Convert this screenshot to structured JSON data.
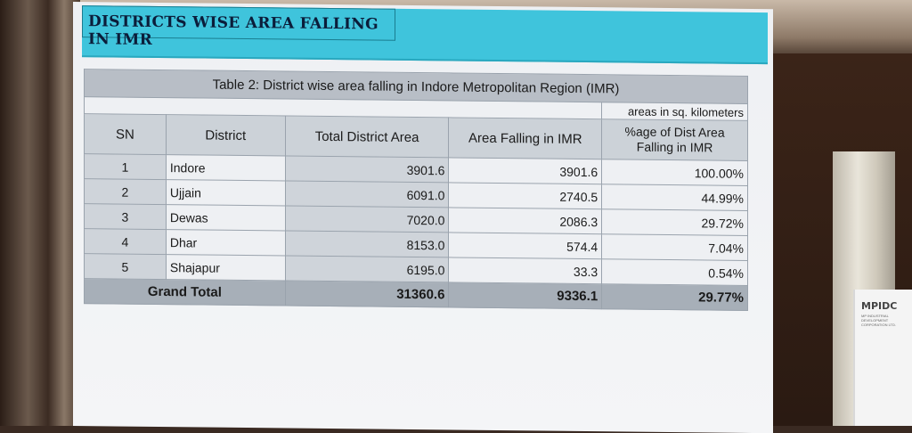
{
  "slide": {
    "title": "DISTRICTS WISE AREA FALLING IN IMR",
    "table_caption": "Table 2: District wise area falling in Indore Metropolitan Region (IMR)",
    "units_note": "areas in sq. kilometers",
    "headers": {
      "sn": "SN",
      "district": "District",
      "total_area": "Total District Area",
      "area_in_imr": "Area Falling in IMR",
      "pct": "%age of Dist Area Falling in IMR"
    },
    "rows": [
      {
        "sn": "1",
        "district": "Indore",
        "total": "3901.6",
        "imr": "3901.6",
        "pct": "100.00%"
      },
      {
        "sn": "2",
        "district": "Ujjain",
        "total": "6091.0",
        "imr": "2740.5",
        "pct": "44.99%"
      },
      {
        "sn": "3",
        "district": "Dewas",
        "total": "7020.0",
        "imr": "2086.3",
        "pct": "29.72%"
      },
      {
        "sn": "4",
        "district": "Dhar",
        "total": "8153.0",
        "imr": "574.4",
        "pct": "7.04%"
      },
      {
        "sn": "5",
        "district": "Shajapur",
        "total": "6195.0",
        "imr": "33.3",
        "pct": "0.54%"
      }
    ],
    "grand_total": {
      "label": "Grand Total",
      "total": "31360.6",
      "imr": "9336.1",
      "pct": "29.77%"
    }
  },
  "sign": {
    "logo": "MPIDC",
    "subtitle": "MP INDUSTRIAL DEVELOPMENT CORPORATION LTD."
  }
}
